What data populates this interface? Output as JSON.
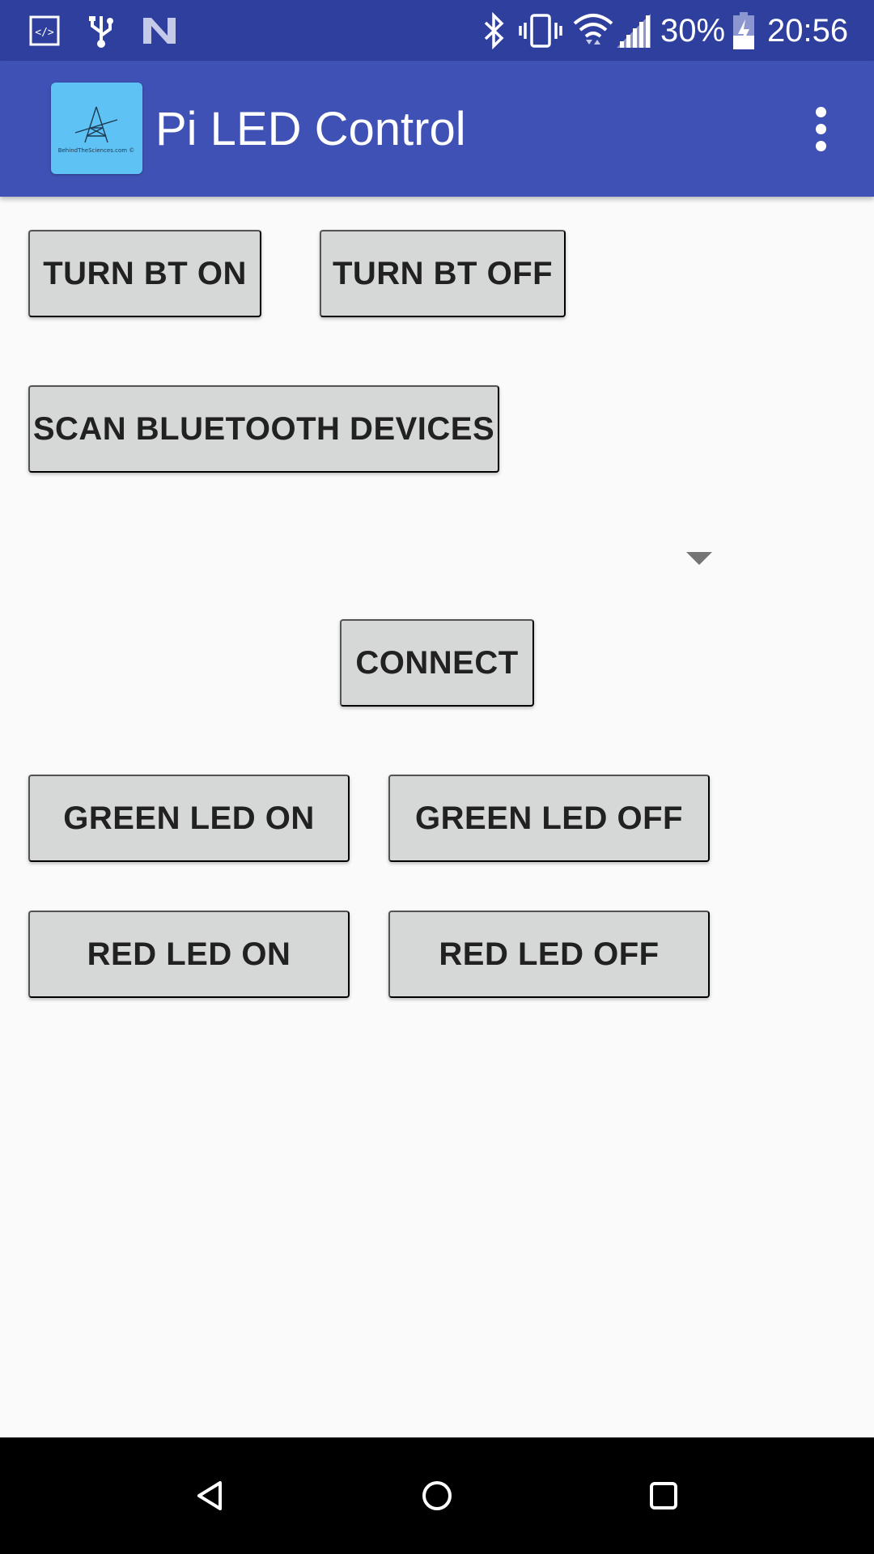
{
  "status_bar": {
    "battery_percent": "30%",
    "time": "20:56",
    "icons": [
      "dev-mode-icon",
      "usb-icon",
      "n-icon",
      "bluetooth-icon",
      "vibrate-icon",
      "wifi-icon",
      "signal-icon",
      "battery-charging-icon"
    ]
  },
  "app_bar": {
    "title": "Pi LED Control",
    "logo_text": "BehindTheSciences.com ©",
    "menu_icon": "overflow-menu-icon"
  },
  "buttons": {
    "turn_bt_on": "TURN BT ON",
    "turn_bt_off": "TURN BT OFF",
    "scan_devices": "SCAN BLUETOOTH DEVICES",
    "connect": "CONNECT",
    "green_led_on": "GREEN LED ON",
    "green_led_off": "GREEN LED OFF",
    "red_led_on": "RED LED ON",
    "red_led_off": "RED LED OFF"
  },
  "device_spinner": {
    "selected_value": "",
    "icon": "dropdown-arrow-icon"
  },
  "nav_bar": {
    "icons": [
      "back-icon",
      "home-icon",
      "recents-icon"
    ]
  }
}
